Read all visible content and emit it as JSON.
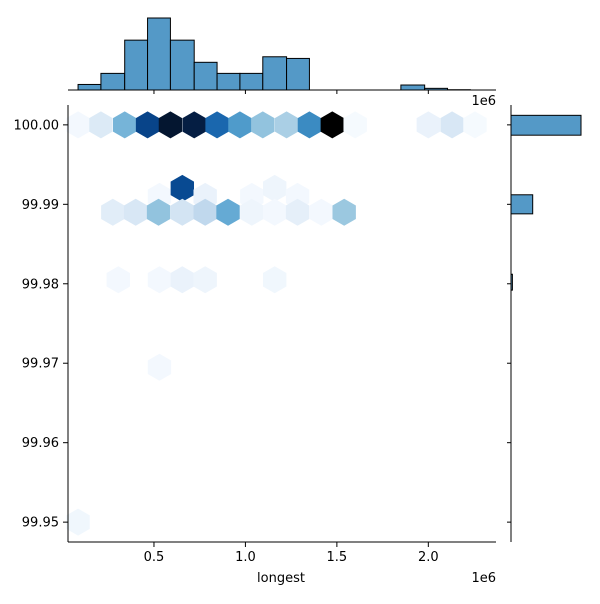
{
  "chart_data": {
    "type": "hexbin",
    "xlabel": "longest",
    "ylabel": "",
    "x_offset_label": "1e6",
    "top_offset_label": "1e6",
    "xlim": [
      30000,
      2370000
    ],
    "ylim": [
      99.9475,
      100.0025
    ],
    "x_ticks": [
      {
        "value": 500000,
        "label": "0.5"
      },
      {
        "value": 1000000,
        "label": "1.0"
      },
      {
        "value": 1500000,
        "label": "1.5"
      },
      {
        "value": 2000000,
        "label": "2.0"
      }
    ],
    "y_ticks": [
      {
        "value": 99.95,
        "label": "99.95"
      },
      {
        "value": 99.96,
        "label": "99.96"
      },
      {
        "value": 99.97,
        "label": "99.97"
      },
      {
        "value": 99.98,
        "label": "99.98"
      },
      {
        "value": 99.99,
        "label": "99.99"
      },
      {
        "value": 100.0,
        "label": "100.00"
      }
    ],
    "colormap": [
      "#f7fbff",
      "#deebf7",
      "#c6dbef",
      "#9ecae1",
      "#6baed6",
      "#4292c6",
      "#2171b5",
      "#08519c",
      "#08306b",
      "#000000"
    ],
    "hexbins": [
      {
        "x": 85000,
        "y": 100.0,
        "level": 0.02
      },
      {
        "x": 210000,
        "y": 100.0,
        "level": 0.12
      },
      {
        "x": 340000,
        "y": 100.0,
        "level": 0.42
      },
      {
        "x": 465000,
        "y": 100.0,
        "level": 0.82
      },
      {
        "x": 590000,
        "y": 100.0,
        "level": 0.95
      },
      {
        "x": 720000,
        "y": 100.0,
        "level": 0.93
      },
      {
        "x": 845000,
        "y": 100.0,
        "level": 0.7
      },
      {
        "x": 970000,
        "y": 100.0,
        "level": 0.52
      },
      {
        "x": 1095000,
        "y": 100.0,
        "level": 0.36
      },
      {
        "x": 1225000,
        "y": 100.0,
        "level": 0.3
      },
      {
        "x": 1350000,
        "y": 100.0,
        "level": 0.58
      },
      {
        "x": 1475000,
        "y": 100.0,
        "level": 1.0
      },
      {
        "x": 1600000,
        "y": 100.0,
        "level": 0.01
      },
      {
        "x": 2000000,
        "y": 100.0,
        "level": 0.06
      },
      {
        "x": 2130000,
        "y": 100.0,
        "level": 0.14
      },
      {
        "x": 2255000,
        "y": 100.0,
        "level": 0.01
      },
      {
        "x": 530000,
        "y": 99.991,
        "level": 0.02
      },
      {
        "x": 655000,
        "y": 99.992,
        "level": 0.8
      },
      {
        "x": 780000,
        "y": 99.991,
        "level": 0.06
      },
      {
        "x": 1035000,
        "y": 99.991,
        "level": 0.02
      },
      {
        "x": 1160000,
        "y": 99.992,
        "level": 0.04
      },
      {
        "x": 1285000,
        "y": 99.991,
        "level": 0.02
      },
      {
        "x": 275000,
        "y": 99.989,
        "level": 0.1
      },
      {
        "x": 400000,
        "y": 99.989,
        "level": 0.14
      },
      {
        "x": 525000,
        "y": 99.989,
        "level": 0.36
      },
      {
        "x": 655000,
        "y": 99.989,
        "level": 0.16
      },
      {
        "x": 780000,
        "y": 99.989,
        "level": 0.24
      },
      {
        "x": 905000,
        "y": 99.989,
        "level": 0.46
      },
      {
        "x": 1035000,
        "y": 99.989,
        "level": 0.04
      },
      {
        "x": 1160000,
        "y": 99.989,
        "level": 0.02
      },
      {
        "x": 1285000,
        "y": 99.989,
        "level": 0.08
      },
      {
        "x": 1415000,
        "y": 99.989,
        "level": 0.02
      },
      {
        "x": 1540000,
        "y": 99.989,
        "level": 0.34
      },
      {
        "x": 305000,
        "y": 99.9805,
        "level": 0.02
      },
      {
        "x": 530000,
        "y": 99.9805,
        "level": 0.02
      },
      {
        "x": 655000,
        "y": 99.9805,
        "level": 0.06
      },
      {
        "x": 780000,
        "y": 99.9805,
        "level": 0.04
      },
      {
        "x": 1160000,
        "y": 99.9805,
        "level": 0.03
      },
      {
        "x": 530000,
        "y": 99.9695,
        "level": 0.02
      },
      {
        "x": 85000,
        "y": 99.95,
        "level": 0.03
      }
    ],
    "x_histogram": {
      "bin_edges": [
        85000,
        210000,
        340000,
        465000,
        590000,
        720000,
        845000,
        970000,
        1095000,
        1225000,
        1350000,
        1475000,
        1600000,
        1725000,
        1850000,
        1980000,
        2105000,
        2230000
      ],
      "counts": [
        1,
        3,
        9,
        13,
        9,
        5,
        3,
        3,
        6,
        5.7,
        0,
        0,
        0,
        0,
        0.9,
        0.3,
        0.05
      ],
      "color": "#5499c7"
    },
    "y_histogram": {
      "bars": [
        {
          "y_low": 99.9987,
          "y_high": 100.0012,
          "count": 100
        },
        {
          "y_low": 99.9888,
          "y_high": 99.9912,
          "count": 31
        },
        {
          "y_low": 99.9792,
          "y_high": 99.9812,
          "count": 2
        }
      ],
      "color": "#5499c7"
    }
  }
}
